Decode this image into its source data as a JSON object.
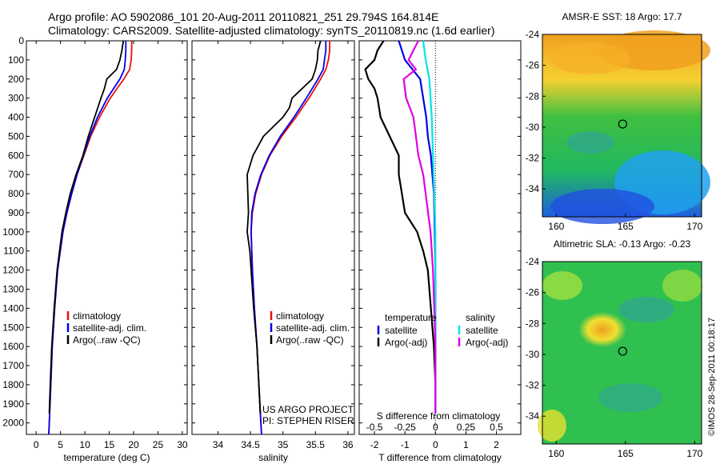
{
  "header": {
    "line1": "Argo profile: AO 5902086_101 20-Aug-2011 20110821_251 29.794S 164.814E",
    "line2": "Climatology: CARS2009. Satellite-adjusted climatology: synTS_20110819.nc (1.6d earlier)"
  },
  "credit": "©IMOS 28-Sep-2011 00:18:17",
  "chart_data": [
    {
      "type": "line",
      "xlabel": "temperature (deg C)",
      "ylabel": "",
      "xlim": [
        -2,
        31
      ],
      "ylim": [
        2060,
        0
      ],
      "xticks": [
        "0",
        "5",
        "10",
        "15",
        "20",
        "25",
        "30"
      ],
      "yticks": [
        "0",
        "100",
        "200",
        "300",
        "400",
        "500",
        "600",
        "700",
        "800",
        "900",
        "1000",
        "1100",
        "1200",
        "1300",
        "1400",
        "1500",
        "1600",
        "1700",
        "1800",
        "1900",
        "2000"
      ],
      "legend": [
        "climatology",
        "satellite-adj. clim.",
        "Argo(..raw -QC)"
      ],
      "colors": [
        "#e8120c",
        "#0000ee",
        "#000000"
      ],
      "series": [
        {
          "name": "climatology",
          "depth": [
            0,
            50,
            100,
            150,
            200,
            300,
            400,
            500,
            600,
            700,
            800,
            900,
            1000,
            1200,
            1400,
            1600,
            1800,
            2000,
            2060
          ],
          "values": [
            19.6,
            19.6,
            19.5,
            19.2,
            18.0,
            15.2,
            13.0,
            11.2,
            9.8,
            8.4,
            7.3,
            6.3,
            5.5,
            4.4,
            3.8,
            3.3,
            3.0,
            2.7,
            2.6
          ]
        },
        {
          "name": "satellite-adj. clim.",
          "depth": [
            0,
            50,
            100,
            150,
            200,
            300,
            400,
            500,
            600,
            700,
            800,
            900,
            1000,
            1200,
            1400,
            1600,
            1800,
            2000,
            2060
          ],
          "values": [
            18.4,
            18.4,
            18.3,
            18.1,
            17.2,
            14.6,
            12.6,
            11.0,
            9.7,
            8.4,
            7.3,
            6.3,
            5.5,
            4.4,
            3.8,
            3.3,
            3.0,
            2.7,
            2.6
          ]
        },
        {
          "name": "Argo(..raw -QC)",
          "depth": [
            0,
            50,
            100,
            150,
            200,
            250,
            300,
            400,
            500,
            600,
            700,
            800,
            900,
            1000,
            1200,
            1400,
            1600,
            1800,
            1950
          ],
          "values": [
            17.9,
            17.6,
            17.2,
            16.5,
            14.5,
            14.0,
            13.3,
            12.0,
            10.7,
            9.6,
            8.2,
            7.0,
            6.1,
            5.3,
            4.3,
            3.7,
            3.2,
            2.9,
            2.7
          ]
        }
      ]
    },
    {
      "type": "line",
      "xlabel": "salinity",
      "ylabel": "",
      "xlim": [
        33.6,
        36.1
      ],
      "ylim": [
        2060,
        0
      ],
      "xticks": [
        "34",
        "34.5",
        "35",
        "35.5",
        "36"
      ],
      "legend": [
        "climatology",
        "satellite-adj. clim.",
        "Argo(..raw -QC)"
      ],
      "colors": [
        "#e8120c",
        "#0000ee",
        "#000000"
      ],
      "annotation": [
        "US ARGO PROJECT",
        "PI: STEPHEN RISER"
      ],
      "series": [
        {
          "name": "climatology",
          "depth": [
            0,
            50,
            100,
            150,
            200,
            300,
            400,
            500,
            600,
            700,
            800,
            900,
            1000,
            1100,
            1200,
            1400,
            1600,
            1800,
            2000,
            2060
          ],
          "values": [
            35.72,
            35.72,
            35.7,
            35.66,
            35.58,
            35.4,
            35.2,
            34.98,
            34.8,
            34.67,
            34.58,
            34.53,
            34.51,
            34.52,
            34.53,
            34.56,
            34.6,
            34.63,
            34.66,
            34.67
          ]
        },
        {
          "name": "satellite-adj. clim.",
          "depth": [
            0,
            50,
            100,
            150,
            200,
            300,
            400,
            500,
            600,
            700,
            800,
            900,
            1000,
            1100,
            1200,
            1400,
            1600,
            1800,
            2000,
            2060
          ],
          "values": [
            35.66,
            35.66,
            35.64,
            35.62,
            35.54,
            35.36,
            35.17,
            34.96,
            34.79,
            34.66,
            34.57,
            34.52,
            34.51,
            34.52,
            34.53,
            34.56,
            34.6,
            34.63,
            34.66,
            34.67
          ]
        },
        {
          "name": "Argo(..raw -QC)",
          "depth": [
            0,
            50,
            100,
            150,
            200,
            300,
            350,
            400,
            500,
            600,
            700,
            800,
            900,
            1000,
            1100,
            1200,
            1400,
            1600,
            1800,
            1950
          ],
          "values": [
            35.58,
            35.54,
            35.53,
            35.5,
            35.45,
            35.14,
            35.1,
            35.0,
            34.7,
            34.54,
            34.45,
            34.46,
            34.47,
            34.45,
            34.49,
            34.51,
            34.55,
            34.6,
            34.63,
            34.65
          ]
        }
      ]
    },
    {
      "type": "line",
      "xlabel": "T difference from climatology",
      "x2label": "S difference from climatology",
      "ylim": [
        2060,
        0
      ],
      "xlim": [
        -2.5,
        2.8
      ],
      "xticks": [
        "-2",
        "-1",
        "0",
        "1",
        "2"
      ],
      "x2lim": [
        -0.625,
        0.7
      ],
      "x2ticks": [
        "-0.5",
        "-0.25",
        "0",
        "0.25",
        "0.5"
      ],
      "legend": {
        "temperature": [
          "satellite",
          "Argo(-adj)"
        ],
        "salinity": [
          "satellite",
          "Argo(-adj)"
        ]
      },
      "colors": {
        "temperature_satellite": "#0000ee",
        "temperature_argo": "#000000",
        "salinity_satellite": "#00e5e5",
        "salinity_argo": "#e000e0"
      },
      "series": [
        {
          "name": "temperature satellite",
          "depth": [
            0,
            100,
            200,
            300,
            400,
            500,
            600,
            700,
            800,
            1000,
            1200,
            1400,
            1600,
            1800,
            1950
          ],
          "values": [
            -1.2,
            -1.0,
            -0.5,
            -0.4,
            -0.3,
            -0.25,
            -0.15,
            -0.1,
            -0.05,
            -0.02,
            0,
            0,
            0,
            0,
            0
          ]
        },
        {
          "name": "temperature Argo(-adj)",
          "depth": [
            0,
            50,
            100,
            150,
            200,
            250,
            300,
            400,
            500,
            600,
            700,
            800,
            900,
            1000,
            1100,
            1200,
            1300,
            1400,
            1500,
            1600,
            1800,
            1950
          ],
          "values": [
            -1.7,
            -1.9,
            -2.0,
            -2.3,
            -2.2,
            -2.0,
            -1.9,
            -1.8,
            -1.5,
            -1.2,
            -1.2,
            -1.1,
            -1.0,
            -0.6,
            -0.4,
            -0.25,
            -0.2,
            -0.15,
            -0.1,
            -0.05,
            0,
            0
          ]
        },
        {
          "name": "salinity satellite",
          "depth": [
            0,
            100,
            200,
            300,
            400,
            600,
            800,
            1000,
            1200,
            1400,
            1600,
            1800,
            1950
          ],
          "values": [
            -0.1,
            -0.08,
            -0.05,
            -0.04,
            -0.03,
            -0.02,
            -0.01,
            0,
            0,
            0,
            0,
            0,
            0
          ]
        },
        {
          "name": "salinity Argo(-adj)",
          "depth": [
            0,
            50,
            100,
            150,
            200,
            300,
            400,
            500,
            600,
            700,
            800,
            900,
            1000,
            1100,
            1200,
            1400,
            1600,
            1800,
            1950
          ],
          "values": [
            -0.14,
            -0.18,
            -0.22,
            -0.16,
            -0.26,
            -0.24,
            -0.18,
            -0.16,
            -0.14,
            -0.1,
            -0.08,
            -0.06,
            -0.04,
            -0.03,
            -0.02,
            -0.01,
            0,
            0,
            0
          ]
        }
      ]
    },
    {
      "type": "heatmap",
      "title": "AMSR-E SST: 18 Argo: 17.7",
      "xticks": [
        "160",
        "165",
        "170"
      ],
      "yticks": [
        "-24",
        "-26",
        "-28",
        "-30",
        "-32",
        "-34"
      ],
      "xlim": [
        159,
        170.5
      ],
      "ylim": [
        -35.8,
        -24
      ],
      "marker": {
        "lon": 164.8,
        "lat": -29.8
      }
    },
    {
      "type": "heatmap",
      "title": "Altimetric SLA: -0.13 Argo: -0.23",
      "xticks": [
        "160",
        "165",
        "170"
      ],
      "yticks": [
        "-24",
        "-26",
        "-28",
        "-30",
        "-32",
        "-34"
      ],
      "xlim": [
        159,
        170.5
      ],
      "ylim": [
        -35.8,
        -24
      ],
      "marker": {
        "lon": 164.8,
        "lat": -29.8
      }
    }
  ]
}
